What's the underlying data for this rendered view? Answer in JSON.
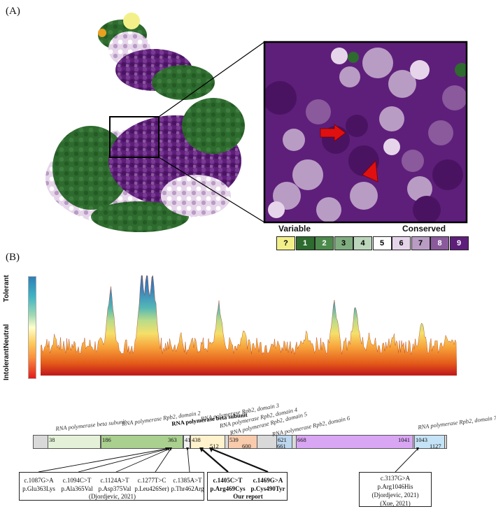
{
  "panels": {
    "a_label": "(A)",
    "b_label": "(B)"
  },
  "legend": {
    "left_title": "Variable",
    "right_title": "Conserved",
    "cells": [
      {
        "label": "?",
        "color": "#f3f08a",
        "text_color": "#000"
      },
      {
        "label": "1",
        "color": "#2e6b2e",
        "text_color": "#fff"
      },
      {
        "label": "2",
        "color": "#4c8a4c",
        "text_color": "#fff"
      },
      {
        "label": "3",
        "color": "#7fad7f",
        "text_color": "#000"
      },
      {
        "label": "4",
        "color": "#bcd6bc",
        "text_color": "#000"
      },
      {
        "label": "5",
        "color": "#ffffff",
        "text_color": "#000"
      },
      {
        "label": "6",
        "color": "#e6d5ea",
        "text_color": "#000"
      },
      {
        "label": "7",
        "color": "#b99cc4",
        "text_color": "#000"
      },
      {
        "label": "8",
        "color": "#8a5a9c",
        "text_color": "#fff"
      },
      {
        "label": "9",
        "color": "#5e1f7a",
        "text_color": "#fff"
      }
    ]
  },
  "tolerance_axis": {
    "top": "Tolerant",
    "middle": "Neutral",
    "bottom": "Intolerant"
  },
  "domains": [
    {
      "label": "RNA polymerase beta subunit",
      "start": "38",
      "end": "",
      "bold": false
    },
    {
      "label": "RNA polymerase Rpb2, domain 2",
      "start": "186",
      "end": "363",
      "bold": false
    },
    {
      "label": "RNA polymerase beta subunit",
      "start": "412",
      "end": "",
      "bold": true
    },
    {
      "label": "RNA polymerase Rpb2, domain 3",
      "start": "438",
      "end": "512",
      "bold": false
    },
    {
      "label": "RNA polymerase Rpb2, domain 4",
      "start": "539",
      "end": "600",
      "bold": false
    },
    {
      "label": "RNA polymerase Rpb2, domain 5",
      "start": "621",
      "end": "661",
      "bold": false
    },
    {
      "label": "RNA polymerase Rpb2, domain 6",
      "start": "668",
      "end": "1041",
      "bold": false
    },
    {
      "label": "RNA polymerase Rpb2, domain 7",
      "start": "1043",
      "end": "1127",
      "bold": false
    }
  ],
  "variant_box_1": {
    "variants": [
      {
        "c": "c.1087G>A",
        "p": "p.Glu363Lys"
      },
      {
        "c": "c.1094C>T",
        "p": "p.Ala365Val"
      },
      {
        "c": "c.1124A>T",
        "p": "p.Asp375Val"
      },
      {
        "c": "c.1277T>C",
        "p": "p.Leu426Ser)"
      },
      {
        "c": "c.1385A>T",
        "p": "p.Thr462Arg"
      }
    ],
    "citation": "(Djordjevic, 2021)"
  },
  "variant_box_2": {
    "variants": [
      {
        "c": "c.1405C>T",
        "p": "p.Arg469Cys"
      },
      {
        "c": "c.1469G>A",
        "p": "p.Cys490Tyr"
      }
    ],
    "citation": "Our report"
  },
  "variant_box_3": {
    "c": "c.3137G>A",
    "p": "p.Arg1046His",
    "citation1": "(Djordjevic, 2021)",
    "citation2": "(Xue, 2021)"
  }
}
